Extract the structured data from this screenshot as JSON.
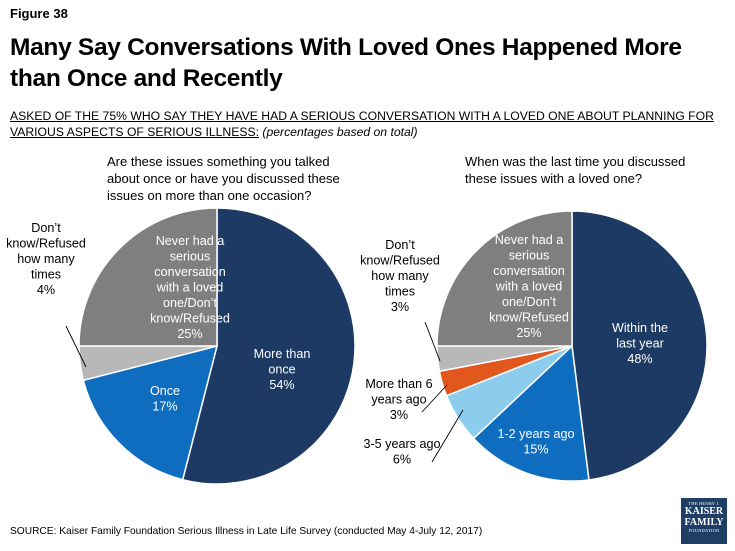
{
  "figure_label": "Figure 38",
  "title": "Many Say Conversations With Loved Ones Happened More than Once and Recently",
  "subtitle_main": "ASKED OF THE 75% WHO SAY THEY HAVE HAD A SERIOUS CONVERSATION WITH A LOVED ONE ABOUT PLANNING FOR VARIOUS ASPECTS OF SERIOUS ILLNESS:",
  "subtitle_note": "(percentages based on total)",
  "source": "SOURCE: Kaiser Family Foundation Serious Illness in Late Life Survey (conducted May 4-July 12, 2017)",
  "logo": {
    "line1": "THE HENRY J.",
    "line2": "KAISER",
    "line3": "FAMILY",
    "line4": "FOUNDATION"
  },
  "colors": {
    "dark_navy": "#1c3a63",
    "blue": "#0e6dbf",
    "light_blue": "#8ccdee",
    "orange": "#e2571e",
    "light_gray": "#b8b8b8",
    "dark_gray": "#7f7f7f"
  },
  "chart_data": [
    {
      "type": "pie",
      "title": "Are these issues something you talked about once or have you discussed these issues on more than one occasion?",
      "slices": [
        {
          "label": "More than once",
          "value": 54,
          "value_label": "54%",
          "color": "#1c3a63"
        },
        {
          "label": "Once",
          "value": 17,
          "value_label": "17%",
          "color": "#0e6dbf"
        },
        {
          "label": "Don't know/Refused how many times",
          "value": 4,
          "value_label": "4%",
          "color": "#b8b8b8"
        },
        {
          "label": "Never had a serious conversation with a loved one/Don't know/Refused",
          "value": 25,
          "value_label": "25%",
          "color": "#7f7f7f"
        }
      ]
    },
    {
      "type": "pie",
      "title": "When was the last time you discussed these issues with a loved one?",
      "slices": [
        {
          "label": "Within the last year",
          "value": 48,
          "value_label": "48%",
          "color": "#1c3a63"
        },
        {
          "label": "1-2 years ago",
          "value": 15,
          "value_label": "15%",
          "color": "#0e6dbf"
        },
        {
          "label": "3-5 years ago",
          "value": 6,
          "value_label": "6%",
          "color": "#8ccdee"
        },
        {
          "label": "More than 6 years ago",
          "value": 3,
          "value_label": "3%",
          "color": "#e2571e"
        },
        {
          "label": "Don't know/Refused how many times",
          "value": 3,
          "value_label": "3%",
          "color": "#b8b8b8"
        },
        {
          "label": "Never had a serious conversation with a loved one/Don't know/Refused",
          "value": 25,
          "value_label": "25%",
          "color": "#7f7f7f"
        }
      ]
    }
  ]
}
